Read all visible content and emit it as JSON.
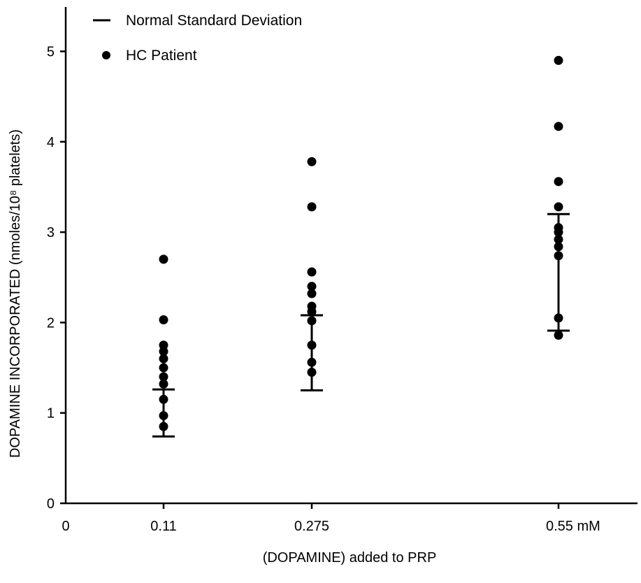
{
  "chart_data": {
    "type": "scatter",
    "xlabel": "(DOPAMINE) added to PRP",
    "ylabel": "DOPAMINE INCORPORATED (nmoles/10⁸ platelets)",
    "ylim": [
      0,
      5.5
    ],
    "xlim": [
      0,
      0.62
    ],
    "x_ticks": [
      {
        "value": 0,
        "label": "0"
      },
      {
        "value": 0.11,
        "label": "0.11"
      },
      {
        "value": 0.275,
        "label": "0.275"
      },
      {
        "value": 0.55,
        "label": "0.55 mM"
      }
    ],
    "y_ticks": [
      {
        "value": 0,
        "label": "0"
      },
      {
        "value": 1,
        "label": "1"
      },
      {
        "value": 2,
        "label": "2"
      },
      {
        "value": 3,
        "label": "3"
      },
      {
        "value": 4,
        "label": "4"
      },
      {
        "value": 5,
        "label": "5"
      }
    ],
    "legend": {
      "placement": "top-left",
      "items": [
        {
          "marker": "line",
          "label": "Normal Standard Deviation"
        },
        {
          "marker": "dot",
          "label": "HC Patient"
        }
      ]
    },
    "series": [
      {
        "name": "HC Patient",
        "marker": "dot",
        "points": [
          {
            "x": 0.11,
            "y": 2.7
          },
          {
            "x": 0.11,
            "y": 2.03
          },
          {
            "x": 0.11,
            "y": 1.75
          },
          {
            "x": 0.11,
            "y": 1.68
          },
          {
            "x": 0.11,
            "y": 1.6
          },
          {
            "x": 0.11,
            "y": 1.5
          },
          {
            "x": 0.11,
            "y": 1.4
          },
          {
            "x": 0.11,
            "y": 1.32
          },
          {
            "x": 0.11,
            "y": 1.15
          },
          {
            "x": 0.11,
            "y": 0.97
          },
          {
            "x": 0.11,
            "y": 0.85
          },
          {
            "x": 0.275,
            "y": 3.78
          },
          {
            "x": 0.275,
            "y": 3.28
          },
          {
            "x": 0.275,
            "y": 2.56
          },
          {
            "x": 0.275,
            "y": 2.4
          },
          {
            "x": 0.275,
            "y": 2.32
          },
          {
            "x": 0.275,
            "y": 2.18
          },
          {
            "x": 0.275,
            "y": 2.12
          },
          {
            "x": 0.275,
            "y": 2.02
          },
          {
            "x": 0.275,
            "y": 1.75
          },
          {
            "x": 0.275,
            "y": 1.56
          },
          {
            "x": 0.275,
            "y": 1.45
          },
          {
            "x": 0.55,
            "y": 4.9
          },
          {
            "x": 0.55,
            "y": 4.17
          },
          {
            "x": 0.55,
            "y": 3.56
          },
          {
            "x": 0.55,
            "y": 3.28
          },
          {
            "x": 0.55,
            "y": 3.05
          },
          {
            "x": 0.55,
            "y": 3.0
          },
          {
            "x": 0.55,
            "y": 2.92
          },
          {
            "x": 0.55,
            "y": 2.84
          },
          {
            "x": 0.55,
            "y": 2.74
          },
          {
            "x": 0.55,
            "y": 2.05
          },
          {
            "x": 0.55,
            "y": 1.86
          }
        ]
      },
      {
        "name": "Normal Standard Deviation",
        "marker": "errorbar",
        "bars": [
          {
            "x": 0.11,
            "low": 0.74,
            "mean": 1.26
          },
          {
            "x": 0.275,
            "low": 1.25,
            "mean": 2.08
          },
          {
            "x": 0.55,
            "low": 1.91,
            "mean": 3.2
          }
        ]
      }
    ],
    "grid": false
  }
}
